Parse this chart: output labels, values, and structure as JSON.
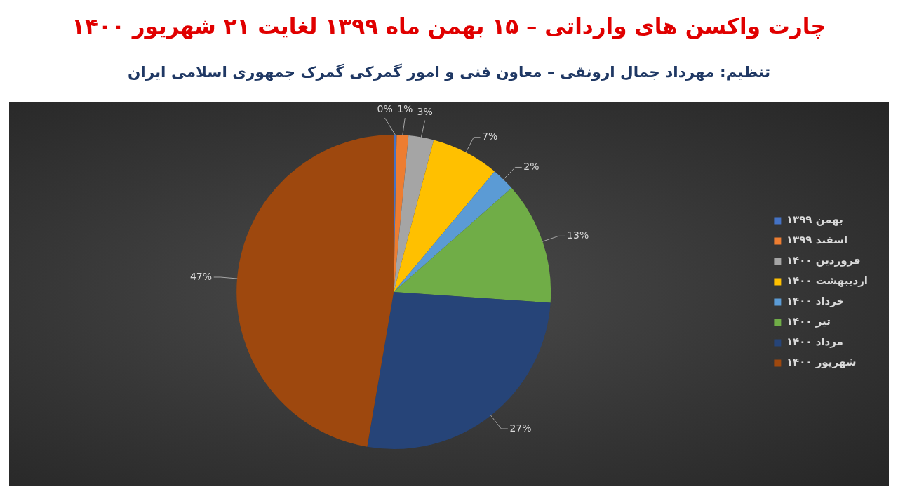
{
  "chart_data": {
    "type": "pie",
    "title": "چارت واکسن های وارداتی – ۱۵ بهمن ماه ۱۳۹۹ لغایت ۲۱ شهریور ۱۴۰۰",
    "subtitle": "تنظیم: مهرداد جمال ارونقی – معاون فنی و امور گمرکی گمرک جمهوری اسلامی ایران",
    "categories": [
      "بهمن ۱۳۹۹",
      "اسفند ۱۳۹۹",
      "فروردین ۱۴۰۰",
      "اردیبهشت ۱۴۰۰",
      "خرداد ۱۴۰۰",
      "تیر ۱۴۰۰",
      "مرداد ۱۴۰۰",
      "شهریور ۱۴۰۰"
    ],
    "values": [
      0.3,
      1.2,
      2.6,
      7.0,
      2.4,
      12.6,
      26.6,
      47.3
    ],
    "value_labels": [
      "0%",
      "1%",
      "3%",
      "7%",
      "2%",
      "13%",
      "27%",
      "47%"
    ],
    "colors": [
      "#4472c4",
      "#ed7d31",
      "#a5a5a5",
      "#ffc000",
      "#5b9bd5",
      "#70ad47",
      "#264478",
      "#9e480e"
    ],
    "legend": "right"
  }
}
